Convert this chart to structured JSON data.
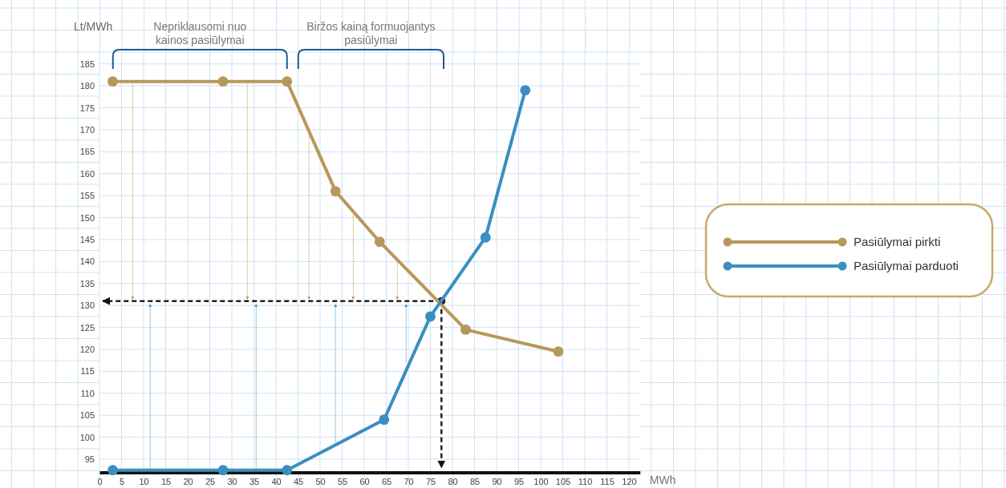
{
  "chart_data": {
    "type": "line",
    "xlabel": "MWh",
    "ylabel": "Lt/MWh",
    "annotations": [
      "Nepriklausomi nuo kainos pasiūlymai",
      "Biržos kainą formuojantys pasiūlymai"
    ],
    "series": [
      {
        "name": "Pasiūlymai pirkti",
        "color": "#b8985a",
        "x": [
          3,
          28,
          42.5,
          53.5,
          63.5,
          83,
          104
        ],
        "values": [
          181,
          181,
          181,
          156,
          144.5,
          124.5,
          119.5
        ]
      },
      {
        "name": "Pasiūlymai parduoti",
        "color": "#3a8fc0",
        "x": [
          3,
          28,
          42.5,
          64.5,
          75,
          87.5,
          96.5
        ],
        "values": [
          92.5,
          92.5,
          92.5,
          104,
          127.5,
          145.5,
          179
        ]
      }
    ],
    "ref_lines": [
      {
        "axis": "y",
        "value": 131,
        "color": "#222222",
        "line_style": "dashed"
      },
      {
        "axis": "x",
        "value": 77.5,
        "color": "#222222",
        "line_style": "dashed"
      }
    ],
    "xlim": [
      0,
      122.5
    ],
    "xticks": [
      0,
      5,
      10,
      15,
      20,
      25,
      30,
      35,
      40,
      45,
      50,
      55,
      60,
      65,
      70,
      75,
      80,
      85,
      90,
      95,
      100,
      105,
      110,
      115,
      120
    ],
    "ylim": [
      92,
      187.5
    ],
    "yticks": [
      95,
      100,
      105,
      110,
      115,
      120,
      125,
      130,
      135,
      140,
      145,
      150,
      155,
      160,
      165,
      170,
      175,
      180,
      185
    ],
    "grid": true,
    "legend": "right",
    "marker": "circle",
    "line_style": "solid"
  }
}
